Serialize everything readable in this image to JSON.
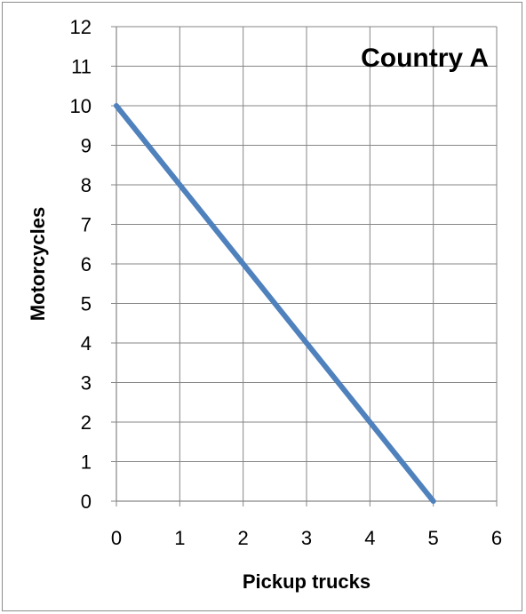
{
  "chart_data": {
    "type": "line",
    "title": "Country A",
    "xlabel": "Pickup trucks",
    "ylabel": "Motorcycles",
    "xlim": [
      0,
      6
    ],
    "ylim": [
      0,
      12
    ],
    "xticks": [
      "0",
      "1",
      "2",
      "3",
      "4",
      "5",
      "6"
    ],
    "yticks": [
      "0",
      "1",
      "2",
      "3",
      "4",
      "5",
      "6",
      "7",
      "8",
      "9",
      "10",
      "11",
      "12"
    ],
    "grid": true,
    "legend": "none",
    "series": [
      {
        "x": [
          0,
          5
        ],
        "y": [
          10,
          0
        ],
        "color": "#4f81bd"
      }
    ]
  }
}
